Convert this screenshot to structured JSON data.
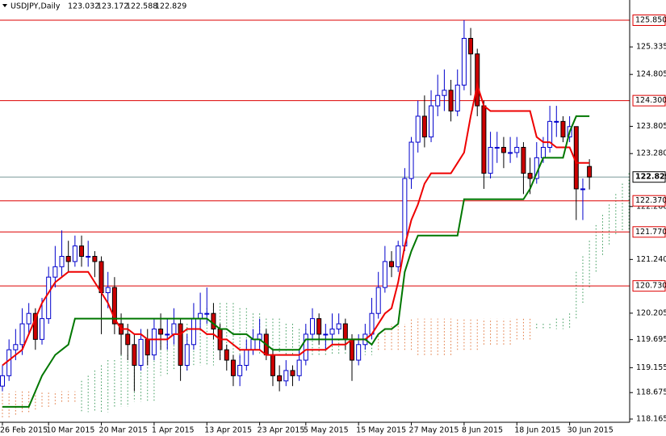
{
  "chart_data": {
    "type": "candlestick",
    "title": "USDJPY,Daily",
    "last_ohlc": [
      123.032,
      123.172,
      122.588,
      122.829
    ],
    "categories": [
      "26 Feb 2015",
      null,
      null,
      null,
      null,
      null,
      null,
      "10 Mar 2015",
      null,
      null,
      null,
      null,
      null,
      null,
      null,
      "20 Mar 2015",
      null,
      null,
      null,
      null,
      null,
      null,
      null,
      "1 Apr 2015",
      null,
      null,
      null,
      null,
      null,
      null,
      null,
      "13 Apr 2015",
      null,
      null,
      null,
      null,
      null,
      null,
      null,
      "23 Apr 2015",
      null,
      null,
      null,
      null,
      null,
      null,
      "5 May 2015",
      null,
      null,
      null,
      null,
      null,
      null,
      null,
      "15 May 2015",
      null,
      null,
      null,
      null,
      null,
      null,
      null,
      "27 May 2015",
      null,
      null,
      null,
      null,
      null,
      null,
      null,
      "8 Jun 2015",
      null,
      null,
      null,
      null,
      null,
      null,
      null,
      "18 Jun 2015",
      null,
      null,
      null,
      null,
      null,
      null,
      null,
      "30 Jun 2015",
      null,
      null,
      null,
      null,
      null,
      null,
      null,
      null,
      null
    ],
    "open": [
      118.8,
      119.0,
      119.5,
      119.6,
      120.0,
      120.2,
      119.7,
      120.1,
      120.9,
      121.1,
      121.3,
      121.2,
      121.5,
      121.3,
      121.3,
      121.2,
      120.6,
      120.7,
      120.0,
      119.8,
      119.6,
      119.2,
      119.7,
      119.4,
      119.9,
      119.8,
      119.8,
      120.0,
      119.2,
      119.6,
      120.1,
      120.2,
      120.2,
      119.9,
      119.5,
      119.3,
      119.0,
      119.2,
      119.5,
      119.7,
      119.8,
      119.4,
      119.0,
      118.9,
      119.1,
      119.0,
      119.3,
      119.8,
      120.1,
      119.8,
      119.8,
      119.9,
      120.0,
      119.7,
      119.3,
      119.6,
      119.8,
      120.2,
      120.7,
      121.2,
      121.1,
      121.5,
      122.8,
      123.5,
      124.0,
      123.6,
      124.2,
      124.4,
      124.5,
      124.1,
      124.6,
      125.5,
      125.2,
      124.2,
      122.9,
      123.4,
      123.4,
      123.3,
      123.3,
      123.4,
      122.9,
      122.8,
      123.2,
      123.4,
      123.9,
      123.9,
      123.6,
      123.8,
      122.6,
      123.032,
      null,
      null,
      null,
      null,
      null,
      null
    ],
    "high": [
      119.2,
      119.7,
      119.9,
      120.3,
      120.4,
      120.3,
      120.5,
      121.1,
      121.5,
      121.8,
      121.6,
      121.7,
      121.7,
      121.6,
      121.4,
      121.3,
      121.0,
      120.9,
      120.2,
      120.0,
      119.8,
      119.9,
      119.9,
      120.1,
      120.2,
      120.1,
      120.3,
      120.1,
      119.8,
      120.4,
      120.6,
      120.7,
      120.4,
      120.0,
      119.6,
      119.4,
      119.4,
      119.7,
      119.9,
      120.1,
      119.9,
      119.5,
      119.2,
      119.3,
      119.2,
      119.5,
      120.0,
      120.3,
      120.2,
      120.0,
      120.2,
      120.2,
      120.1,
      119.8,
      119.8,
      120.0,
      120.5,
      121.0,
      121.5,
      121.4,
      121.6,
      123.0,
      123.6,
      124.3,
      124.4,
      124.5,
      124.8,
      124.9,
      124.7,
      124.9,
      125.85,
      125.7,
      125.3,
      124.3,
      123.7,
      123.7,
      123.6,
      123.6,
      123.6,
      123.5,
      123.2,
      123.5,
      123.6,
      124.2,
      124.2,
      124.0,
      124.0,
      123.8,
      122.8,
      123.172,
      null,
      null,
      null,
      null,
      null,
      null
    ],
    "low": [
      118.7,
      118.9,
      119.3,
      119.4,
      119.8,
      119.5,
      119.6,
      120.0,
      120.7,
      120.9,
      121.0,
      121.1,
      121.1,
      121.1,
      120.9,
      119.8,
      120.3,
      119.8,
      119.4,
      119.3,
      118.7,
      119.1,
      119.2,
      119.3,
      119.5,
      119.5,
      119.6,
      118.9,
      119.1,
      119.5,
      119.9,
      120.0,
      119.7,
      119.3,
      119.1,
      118.8,
      118.8,
      119.1,
      119.4,
      119.5,
      119.3,
      118.8,
      118.7,
      118.8,
      118.8,
      118.9,
      119.2,
      119.7,
      119.6,
      119.5,
      119.6,
      119.8,
      119.5,
      118.9,
      119.2,
      119.5,
      119.7,
      120.1,
      120.6,
      120.9,
      121.0,
      121.4,
      122.6,
      123.3,
      123.4,
      123.5,
      124.0,
      124.1,
      123.9,
      124.0,
      124.5,
      124.4,
      124.0,
      122.6,
      122.8,
      123.1,
      123.0,
      123.1,
      123.2,
      122.5,
      122.5,
      122.7,
      123.1,
      123.3,
      123.6,
      123.5,
      123.5,
      122.0,
      122.0,
      122.588,
      null,
      null,
      null,
      null,
      null,
      null
    ],
    "close": [
      119.0,
      119.5,
      119.6,
      120.0,
      120.2,
      119.7,
      120.1,
      120.9,
      121.1,
      121.3,
      121.2,
      121.5,
      121.3,
      121.3,
      121.2,
      120.6,
      120.7,
      120.0,
      119.8,
      119.6,
      119.2,
      119.7,
      119.4,
      119.9,
      119.8,
      119.8,
      120.0,
      119.2,
      119.6,
      120.1,
      120.2,
      120.2,
      119.9,
      119.5,
      119.3,
      119.0,
      119.2,
      119.5,
      119.7,
      119.8,
      119.4,
      119.0,
      118.9,
      119.1,
      119.0,
      119.3,
      119.8,
      120.1,
      119.8,
      119.8,
      119.9,
      120.0,
      119.7,
      119.3,
      119.6,
      119.8,
      120.2,
      120.7,
      121.2,
      121.1,
      121.5,
      122.8,
      123.5,
      124.0,
      123.6,
      124.2,
      124.4,
      124.5,
      124.1,
      124.6,
      125.5,
      125.2,
      124.2,
      122.9,
      123.4,
      123.4,
      123.3,
      123.3,
      123.4,
      122.9,
      122.8,
      123.2,
      123.4,
      123.9,
      123.9,
      123.6,
      123.8,
      122.6,
      122.6,
      122.829,
      null,
      null,
      null,
      null,
      null,
      null
    ],
    "up_color": "#0000cc",
    "down_color": "#cc0000",
    "tenkan_sen": {
      "color": "#ee0000",
      "values": [
        119.2,
        119.3,
        119.4,
        119.5,
        119.8,
        120.1,
        120.4,
        120.6,
        120.8,
        120.9,
        121.0,
        121.0,
        121.0,
        121.0,
        120.8,
        120.6,
        120.4,
        120.1,
        119.9,
        119.9,
        119.8,
        119.8,
        119.7,
        119.7,
        119.7,
        119.7,
        119.8,
        119.8,
        119.9,
        119.9,
        119.9,
        119.8,
        119.8,
        119.7,
        119.7,
        119.6,
        119.5,
        119.5,
        119.5,
        119.5,
        119.4,
        119.4,
        119.4,
        119.4,
        119.4,
        119.4,
        119.5,
        119.5,
        119.5,
        119.5,
        119.6,
        119.6,
        119.6,
        119.7,
        119.7,
        119.7,
        119.8,
        120.0,
        120.2,
        120.3,
        120.8,
        121.5,
        122.0,
        122.3,
        122.7,
        122.9,
        122.9,
        122.9,
        122.9,
        123.1,
        123.3,
        124.0,
        124.6,
        124.2,
        124.1,
        124.1,
        124.1,
        124.1,
        124.1,
        124.1,
        124.1,
        123.6,
        123.5,
        123.5,
        123.4,
        123.4,
        123.4,
        123.1,
        123.1,
        123.1,
        null,
        null,
        null,
        null,
        null,
        null
      ]
    },
    "kijun_sen": {
      "color": "#007700",
      "values": [
        118.4,
        118.4,
        118.4,
        118.4,
        118.4,
        118.7,
        119.0,
        119.2,
        119.4,
        119.5,
        119.6,
        120.1,
        120.1,
        120.1,
        120.1,
        120.1,
        120.1,
        120.1,
        120.1,
        120.1,
        120.1,
        120.1,
        120.1,
        120.1,
        120.1,
        120.1,
        120.1,
        120.1,
        120.1,
        120.1,
        120.1,
        120.1,
        120.0,
        119.9,
        119.9,
        119.8,
        119.8,
        119.8,
        119.7,
        119.7,
        119.6,
        119.5,
        119.5,
        119.5,
        119.5,
        119.5,
        119.7,
        119.7,
        119.7,
        119.7,
        119.7,
        119.7,
        119.7,
        119.7,
        119.7,
        119.7,
        119.6,
        119.8,
        119.9,
        119.9,
        120.0,
        121.0,
        121.4,
        121.7,
        121.7,
        121.7,
        121.7,
        121.7,
        121.7,
        121.7,
        122.4,
        122.4,
        122.4,
        122.4,
        122.4,
        122.4,
        122.4,
        122.4,
        122.4,
        122.4,
        122.6,
        122.9,
        123.2,
        123.2,
        123.2,
        123.2,
        123.7,
        124.0,
        124.0,
        124.0,
        null,
        null,
        null,
        null,
        null,
        null
      ]
    },
    "cloud": {
      "up_color": "#3a9a5a",
      "down_color": "#e0743a",
      "span_a": [
        118.2,
        118.2,
        118.25,
        118.3,
        118.3,
        118.35,
        118.4,
        118.4,
        118.45,
        118.5,
        118.5,
        118.5,
        118.9,
        119.0,
        119.1,
        119.2,
        119.3,
        119.3,
        119.4,
        119.4,
        119.5,
        119.5,
        119.6,
        119.6,
        119.7,
        119.8,
        119.9,
        120.0,
        120.0,
        120.1,
        120.2,
        120.3,
        120.4,
        120.4,
        120.4,
        120.4,
        120.3,
        120.3,
        120.2,
        120.2,
        120.1,
        120.1,
        120.1,
        120.0,
        120.0,
        119.9,
        119.9,
        119.8,
        119.8,
        119.8,
        119.7,
        119.7,
        119.7,
        119.7,
        119.6,
        119.6,
        119.6,
        119.5,
        119.5,
        119.5,
        119.5,
        119.5,
        119.5,
        119.4,
        119.4,
        119.4,
        119.4,
        119.4,
        119.4,
        119.5,
        119.5,
        119.5,
        119.5,
        119.6,
        119.6,
        119.6,
        119.6,
        119.6,
        119.7,
        119.7,
        119.7,
        120.0,
        120.0,
        120.0,
        120.1,
        120.1,
        120.2,
        121.0,
        121.3,
        121.6,
        121.9,
        122.1,
        122.3,
        122.5,
        122.7,
        122.9
      ],
      "span_b": [
        118.7,
        118.7,
        118.7,
        118.7,
        118.7,
        118.7,
        118.7,
        118.7,
        118.7,
        118.7,
        118.7,
        118.7,
        118.3,
        118.3,
        118.3,
        118.3,
        118.3,
        118.4,
        118.4,
        118.4,
        118.5,
        118.5,
        118.5,
        118.5,
        119.0,
        119.0,
        119.1,
        119.1,
        119.1,
        119.2,
        119.2,
        119.2,
        119.2,
        119.3,
        119.3,
        119.3,
        119.3,
        119.3,
        119.4,
        119.4,
        119.4,
        119.4,
        119.4,
        119.4,
        119.4,
        119.4,
        119.4,
        119.4,
        119.4,
        119.4,
        119.4,
        119.4,
        119.4,
        119.4,
        119.4,
        119.4,
        119.4,
        119.8,
        119.9,
        120.0,
        120.0,
        120.0,
        120.1,
        120.1,
        120.1,
        120.1,
        120.1,
        120.1,
        120.1,
        120.1,
        120.1,
        120.1,
        120.1,
        120.1,
        120.1,
        120.1,
        120.1,
        120.1,
        120.1,
        120.1,
        120.1,
        119.9,
        119.9,
        119.9,
        119.9,
        119.9,
        119.9,
        120.1,
        120.4,
        120.7,
        121.0,
        121.3,
        121.5,
        121.7,
        121.8,
        121.8
      ]
    },
    "levels": {
      "color": "#dd0000",
      "values": [
        {
          "value": 125.85,
          "label": "125.850"
        },
        {
          "value": 124.3,
          "label": "124.300"
        },
        {
          "value": 122.37,
          "label": "122.370"
        },
        {
          "value": 121.77,
          "label": "121.770"
        },
        {
          "value": 120.73,
          "label": "120.730"
        }
      ]
    },
    "price_line_color": "#7a9a9a",
    "ylim": [
      118.103,
      126.239
    ],
    "yticks": [
      {
        "value": 125.335,
        "label": "125.335"
      },
      {
        "value": 124.805,
        "label": "124.805"
      },
      {
        "value": 123.805,
        "label": "123.805"
      },
      {
        "value": 123.28,
        "label": "123.280"
      },
      {
        "value": 122.26,
        "label": "122.260"
      },
      {
        "value": 121.24,
        "label": "121.240"
      },
      {
        "value": 120.205,
        "label": "120.205"
      },
      {
        "value": 119.695,
        "label": "119.695"
      },
      {
        "value": 119.155,
        "label": "119.155"
      },
      {
        "value": 118.675,
        "label": "118.675"
      },
      {
        "value": 118.165,
        "label": "118.165"
      }
    ]
  }
}
